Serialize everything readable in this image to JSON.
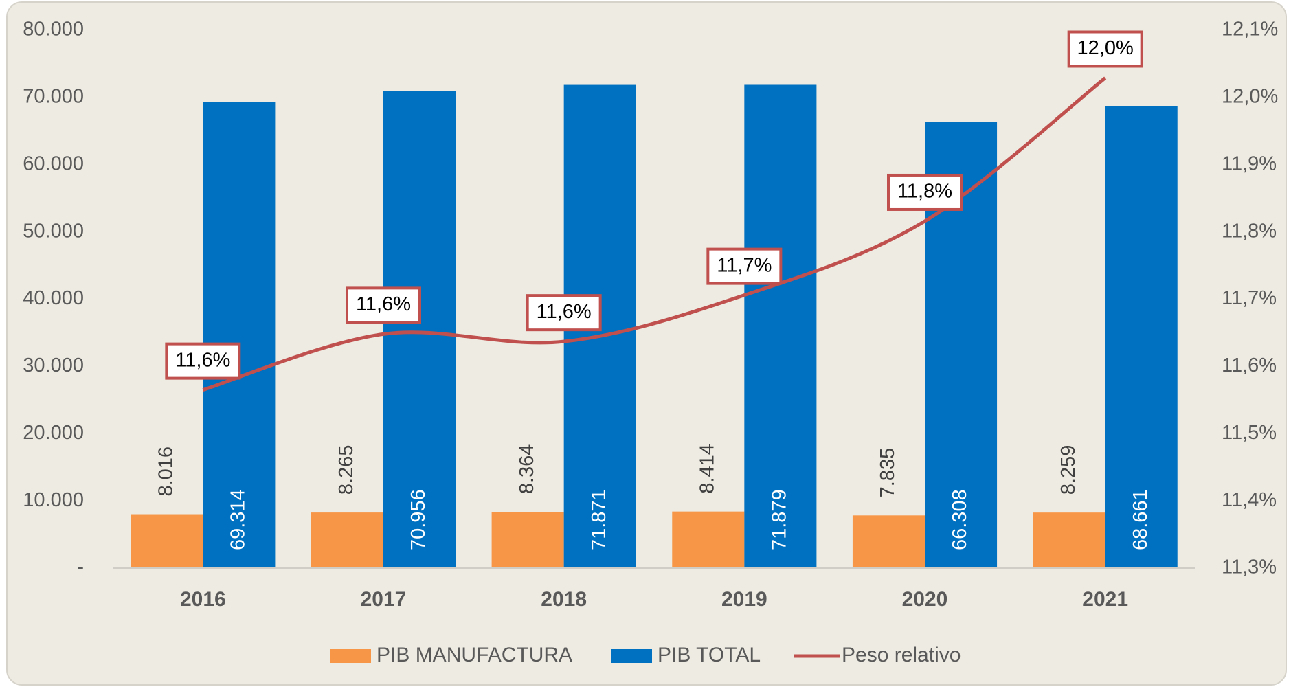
{
  "chart_data": {
    "type": "bar",
    "categories": [
      "2016",
      "2017",
      "2018",
      "2019",
      "2020",
      "2021"
    ],
    "series": [
      {
        "name": "PIB MANUFACTURA",
        "color": "#f79646",
        "values": [
          8016,
          8265,
          8364,
          8414,
          7835,
          8259
        ],
        "value_labels": [
          "8.016",
          "8.265",
          "8.364",
          "8.414",
          "7.835",
          "8.259"
        ]
      },
      {
        "name": "PIB TOTAL",
        "color": "#0070c0",
        "values": [
          69314,
          70956,
          71871,
          71879,
          66308,
          68661
        ],
        "value_labels": [
          "69.314",
          "70.956",
          "71.871",
          "71.879",
          "66.308",
          "68.661"
        ]
      },
      {
        "name": "Peso relativo",
        "type": "line",
        "axis": "y2",
        "color": "#c0504d",
        "values": [
          11.565,
          11.648,
          11.637,
          11.706,
          11.816,
          12.029
        ],
        "value_labels": [
          "11,6%",
          "11,6%",
          "11,6%",
          "11,7%",
          "11,8%",
          "12,0%"
        ]
      }
    ],
    "ylim": [
      0,
      80000
    ],
    "yticks": [
      {
        "value": 0,
        "label": "-"
      },
      {
        "value": 10000,
        "label": "10.000"
      },
      {
        "value": 20000,
        "label": "20.000"
      },
      {
        "value": 30000,
        "label": "30.000"
      },
      {
        "value": 40000,
        "label": "40.000"
      },
      {
        "value": 50000,
        "label": "50.000"
      },
      {
        "value": 60000,
        "label": "60.000"
      },
      {
        "value": 70000,
        "label": "70.000"
      },
      {
        "value": 80000,
        "label": "80.000"
      }
    ],
    "y2lim": [
      11.3,
      12.1
    ],
    "y2ticks": [
      {
        "value": 11.3,
        "label": "11,3%"
      },
      {
        "value": 11.4,
        "label": "11,4%"
      },
      {
        "value": 11.5,
        "label": "11,5%"
      },
      {
        "value": 11.6,
        "label": "11,6%"
      },
      {
        "value": 11.7,
        "label": "11,7%"
      },
      {
        "value": 11.8,
        "label": "11,8%"
      },
      {
        "value": 11.9,
        "label": "11,9%"
      },
      {
        "value": 12.0,
        "label": "12,0%"
      },
      {
        "value": 12.1,
        "label": "12,1%"
      }
    ],
    "grid": false,
    "legend": "bottom"
  }
}
